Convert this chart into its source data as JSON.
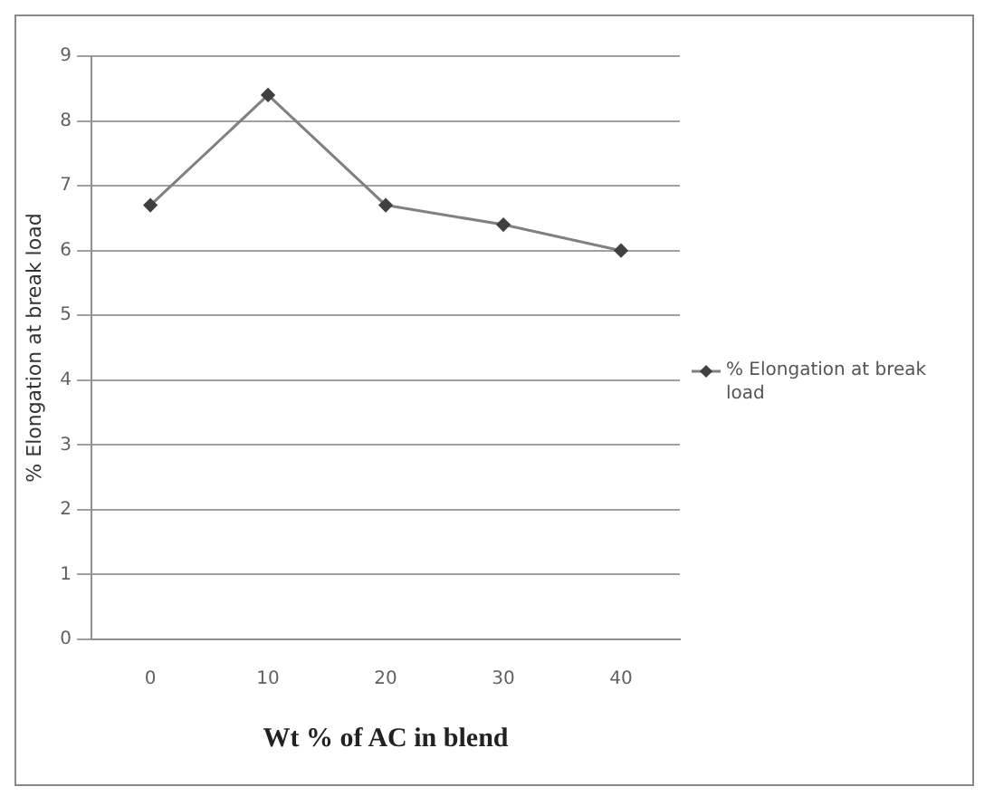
{
  "chart_data": {
    "type": "line",
    "xlabel": "Wt % of AC in blend",
    "ylabel": "% Elongation at break load",
    "categories": [
      "0",
      "10",
      "20",
      "30",
      "40"
    ],
    "series": [
      {
        "name": "% Elongation at break load",
        "color": "#808080",
        "values": [
          6.7,
          8.4,
          6.7,
          6.4,
          6.0
        ]
      }
    ],
    "ylim": [
      0,
      9
    ],
    "yticks": [
      0,
      1,
      2,
      3,
      4,
      5,
      6,
      7,
      8,
      9
    ],
    "grid": "y",
    "legend": "right",
    "marker": "diamond",
    "line_style": "solid"
  }
}
